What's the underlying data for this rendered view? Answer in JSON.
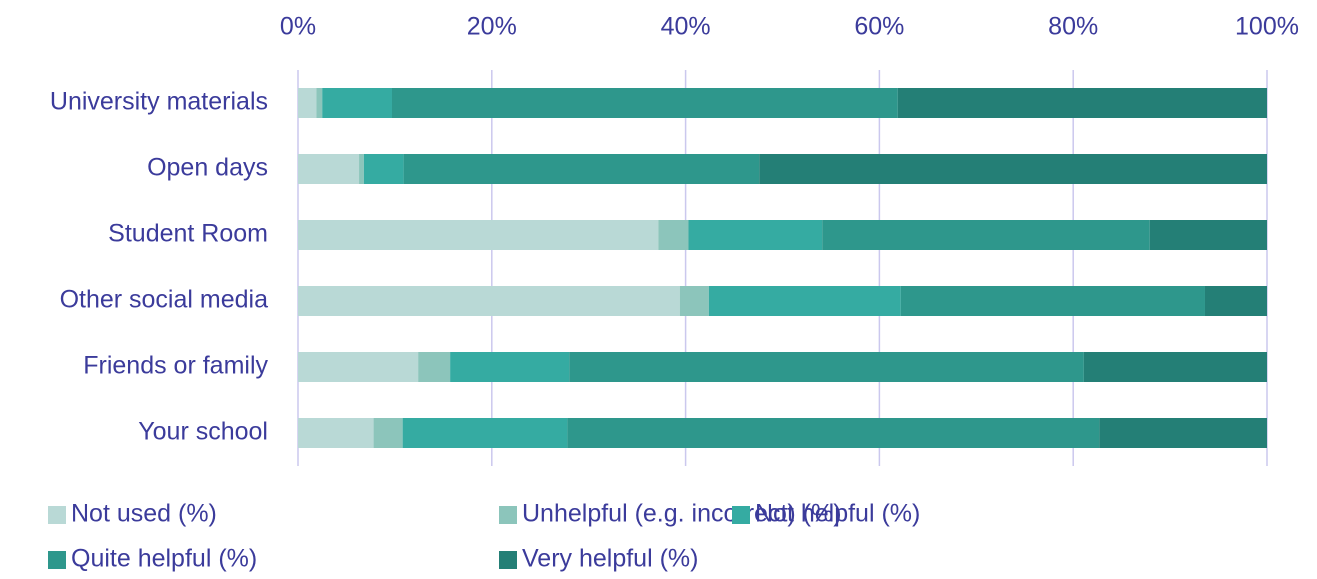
{
  "chart_data": {
    "type": "stacked_bar_horizontal",
    "categories": [
      "University materials",
      "Open days",
      "Student Room",
      "Other social media",
      "Friends or family",
      "Your school"
    ],
    "series": [
      {
        "name": "Not used (%)",
        "color": "#b9d9d6",
        "values": [
          1.9,
          6.3,
          37.2,
          39.4,
          12.4,
          7.8
        ]
      },
      {
        "name": "Unhelpful (e.g. incorrect) (%)",
        "color": "#8cc5bb",
        "values": [
          0.6,
          0.5,
          3.1,
          3.0,
          3.3,
          3.0
        ]
      },
      {
        "name": "Not helpful (%)",
        "color": "#35aba2",
        "values": [
          7.2,
          4.1,
          13.8,
          19.8,
          12.3,
          17.0
        ]
      },
      {
        "name": "Quite helpful (%)",
        "color": "#2e978c",
        "values": [
          52.2,
          36.7,
          33.8,
          31.4,
          53.1,
          54.9
        ]
      },
      {
        "name": "Very helpful (%)",
        "color": "#247f76",
        "values": [
          38.1,
          52.4,
          12.1,
          6.4,
          18.9,
          17.3
        ]
      }
    ],
    "xlim": [
      0,
      100
    ],
    "xticks": [
      {
        "value": 0,
        "label": "0%"
      },
      {
        "value": 20,
        "label": "20%"
      },
      {
        "value": 40,
        "label": "40%"
      },
      {
        "value": 60,
        "label": "60%"
      },
      {
        "value": 80,
        "label": "80%"
      },
      {
        "value": 100,
        "label": "100%"
      }
    ],
    "grid": true,
    "legend": "bottom"
  }
}
